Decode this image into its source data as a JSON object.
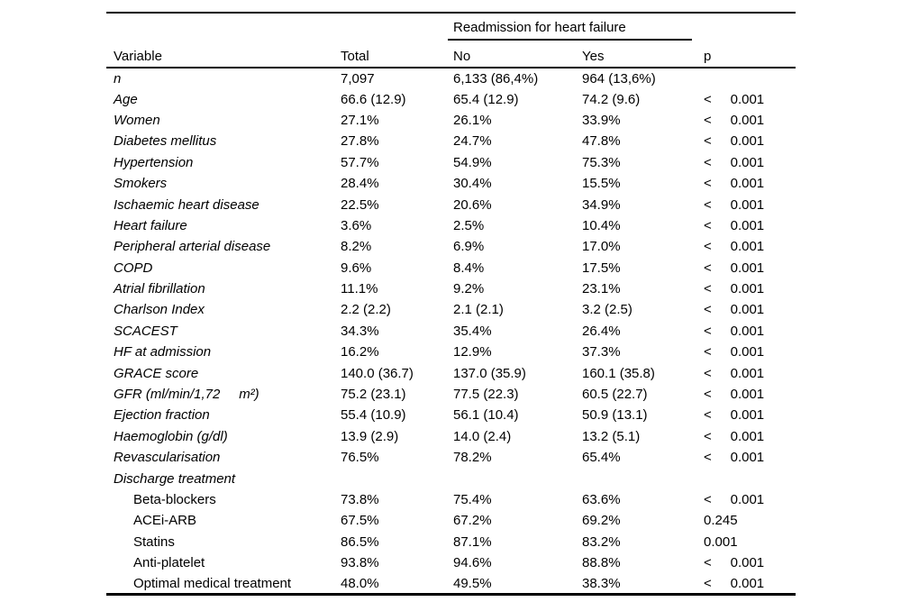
{
  "page": {
    "background": "#ffffff",
    "text_color": "#000000",
    "rule_color": "#000000"
  },
  "table": {
    "span_header": "Readmission for heart failure",
    "columns": [
      "Variable",
      "Total",
      "No",
      "Yes",
      "p"
    ],
    "rows": [
      {
        "variable": "n",
        "total": "7,097",
        "no": "6,133 (86,4%)",
        "yes": "964 (13,6%)",
        "p": "",
        "style": "italic"
      },
      {
        "variable": "Age",
        "total": "66.6 (12.9)",
        "no": "65.4 (12.9)",
        "yes": "74.2 (9.6)",
        "p": "<     0.001",
        "style": "italic"
      },
      {
        "variable": "Women",
        "total": "27.1%",
        "no": "26.1%",
        "yes": "33.9%",
        "p": "<     0.001",
        "style": "italic"
      },
      {
        "variable": "Diabetes mellitus",
        "total": "27.8%",
        "no": "24.7%",
        "yes": "47.8%",
        "p": "<     0.001",
        "style": "italic"
      },
      {
        "variable": "Hypertension",
        "total": "57.7%",
        "no": "54.9%",
        "yes": "75.3%",
        "p": "<     0.001",
        "style": "italic"
      },
      {
        "variable": "Smokers",
        "total": "28.4%",
        "no": "30.4%",
        "yes": "15.5%",
        "p": "<     0.001",
        "style": "italic"
      },
      {
        "variable": "Ischaemic heart disease",
        "total": "22.5%",
        "no": "20.6%",
        "yes": "34.9%",
        "p": "<     0.001",
        "style": "italic"
      },
      {
        "variable": "Heart failure",
        "total": "3.6%",
        "no": "2.5%",
        "yes": "10.4%",
        "p": "<     0.001",
        "style": "italic"
      },
      {
        "variable": "Peripheral arterial disease",
        "total": "8.2%",
        "no": "6.9%",
        "yes": "17.0%",
        "p": "<     0.001",
        "style": "italic"
      },
      {
        "variable": "COPD",
        "total": "9.6%",
        "no": "8.4%",
        "yes": "17.5%",
        "p": "<     0.001",
        "style": "italic"
      },
      {
        "variable": "Atrial fibrillation",
        "total": "11.1%",
        "no": "9.2%",
        "yes": "23.1%",
        "p": "<     0.001",
        "style": "italic"
      },
      {
        "variable": "Charlson Index",
        "total": "2.2 (2.2)",
        "no": "2.1 (2.1)",
        "yes": "3.2 (2.5)",
        "p": "<     0.001",
        "style": "italic"
      },
      {
        "variable": "SCACEST",
        "total": "34.3%",
        "no": "35.4%",
        "yes": "26.4%",
        "p": "<     0.001",
        "style": "italic"
      },
      {
        "variable": "HF at admission",
        "total": "16.2%",
        "no": "12.9%",
        "yes": "37.3%",
        "p": "<     0.001",
        "style": "italic"
      },
      {
        "variable": "GRACE score",
        "total": "140.0 (36.7)",
        "no": "137.0 (35.9)",
        "yes": "160.1 (35.8)",
        "p": "<     0.001",
        "style": "italic"
      },
      {
        "variable": "GFR (ml/min/1,72     m²)",
        "total": "75.2 (23.1)",
        "no": "77.5 (22.3)",
        "yes": "60.5 (22.7)",
        "p": "<     0.001",
        "style": "italic"
      },
      {
        "variable": "Ejection fraction",
        "total": "55.4 (10.9)",
        "no": "56.1 (10.4)",
        "yes": "50.9 (13.1)",
        "p": "<     0.001",
        "style": "italic"
      },
      {
        "variable": "Haemoglobin (g/dl)",
        "total": "13.9 (2.9)",
        "no": "14.0 (2.4)",
        "yes": "13.2 (5.1)",
        "p": "<     0.001",
        "style": "italic"
      },
      {
        "variable": "Revascularisation",
        "total": "76.5%",
        "no": "78.2%",
        "yes": "65.4%",
        "p": "<     0.001",
        "style": "italic"
      },
      {
        "variable": "Discharge treatment",
        "total": "",
        "no": "",
        "yes": "",
        "p": "",
        "style": "italic"
      },
      {
        "variable": "Beta-blockers",
        "total": "73.8%",
        "no": "75.4%",
        "yes": "63.6%",
        "p": "<     0.001",
        "style": "indent"
      },
      {
        "variable": "ACEi-ARB",
        "total": "67.5%",
        "no": "67.2%",
        "yes": "69.2%",
        "p": "0.245",
        "style": "indent"
      },
      {
        "variable": "Statins",
        "total": "86.5%",
        "no": "87.1%",
        "yes": "83.2%",
        "p": "0.001",
        "style": "indent"
      },
      {
        "variable": "Anti-platelet",
        "total": "93.8%",
        "no": "94.6%",
        "yes": "88.8%",
        "p": "<     0.001",
        "style": "indent"
      },
      {
        "variable": "Optimal medical treatment",
        "total": "48.0%",
        "no": "49.5%",
        "yes": "38.3%",
        "p": "<     0.001",
        "style": "indent"
      }
    ]
  }
}
